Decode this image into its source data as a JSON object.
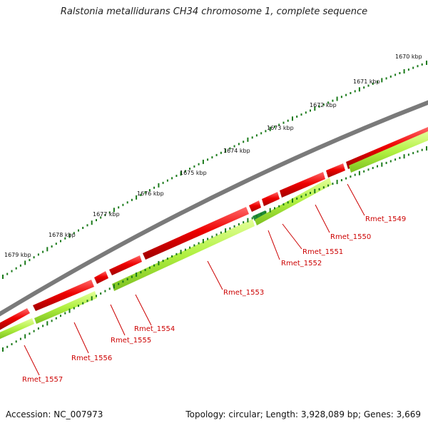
{
  "title": "Ralstonia metallidurans CH34 chromosome 1, complete sequence",
  "footer": {
    "accession": "Accession: NC_007973",
    "summary": "Topology: circular; Length: 3,928,089 bp; Genes: 3,669"
  },
  "colors": {
    "backbone": "#7a7a7a",
    "cds_forward": "#ee0000",
    "cds_reverse": "#b0f040",
    "cds_highlight": "#1e8a3a",
    "tick_major": "#1a7a1a",
    "gene_label": "#cc0000"
  },
  "ticks": [
    {
      "label": "1670 kbp"
    },
    {
      "label": "1671 kbp"
    },
    {
      "label": "1672 kbp"
    },
    {
      "label": "1673 kbp"
    },
    {
      "label": "1674 kbp"
    },
    {
      "label": "1675 kbp"
    },
    {
      "label": "1676 kbp"
    },
    {
      "label": "1677 kbp"
    },
    {
      "label": "1678 kbp"
    },
    {
      "label": "1679 kbp"
    }
  ],
  "genes": [
    {
      "label": "Rmet_1549"
    },
    {
      "label": "Rmet_1550"
    },
    {
      "label": "Rmet_1551"
    },
    {
      "label": "Rmet_1552"
    },
    {
      "label": "Rmet_1553"
    },
    {
      "label": "Rmet_1554"
    },
    {
      "label": "Rmet_1555"
    },
    {
      "label": "Rmet_1556"
    },
    {
      "label": "Rmet_1557"
    }
  ]
}
